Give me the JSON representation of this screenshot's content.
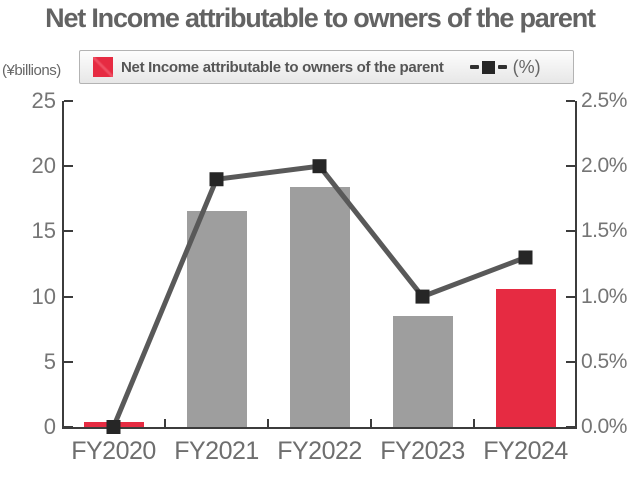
{
  "title": "Net Income attributable to owners of the parent",
  "left_axis_unit": "(¥billions)",
  "legend": {
    "bar_label": "Net Income attributable to owners of the parent",
    "line_label": "(%)"
  },
  "chart_data": {
    "type": "bar+line",
    "title": "Net Income attributable to owners of the parent",
    "categories": [
      "FY2020",
      "FY2021",
      "FY2022",
      "FY2023",
      "FY2024"
    ],
    "series": [
      {
        "name": "Net Income attributable to owners of the parent",
        "type": "bar",
        "axis": "left",
        "values": [
          0.4,
          16.6,
          18.4,
          8.5,
          10.6
        ],
        "colors": [
          "#e62b42",
          "#9e9e9e",
          "#9e9e9e",
          "#9e9e9e",
          "#e62b42"
        ]
      },
      {
        "name": "(%)",
        "type": "line",
        "axis": "right",
        "values": [
          0.0,
          1.9,
          2.0,
          1.0,
          1.3
        ],
        "line_color": "#595959",
        "marker_color": "#262626"
      }
    ],
    "left_axis": {
      "label": "(¥billions)",
      "range": [
        0,
        25
      ],
      "tick_labels": [
        "0",
        "5",
        "10",
        "15",
        "20",
        "25"
      ],
      "tick_values": [
        0,
        5,
        10,
        15,
        20,
        25
      ]
    },
    "right_axis": {
      "label": "(%)",
      "range": [
        0,
        2.5
      ],
      "tick_labels": [
        "0.0%",
        "0.5%",
        "1.0%",
        "1.5%",
        "2.0%",
        "2.5%"
      ],
      "tick_values": [
        0,
        0.5,
        1.0,
        1.5,
        2.0,
        2.5
      ]
    },
    "grid": false,
    "legend_position": "top"
  },
  "colors": {
    "accent_red": "#e62b42",
    "bar_gray": "#9e9e9e",
    "line_gray": "#595959",
    "marker_black": "#262626",
    "text_gray": "#6b6b6b",
    "axis_line": "#3c3c3c"
  }
}
